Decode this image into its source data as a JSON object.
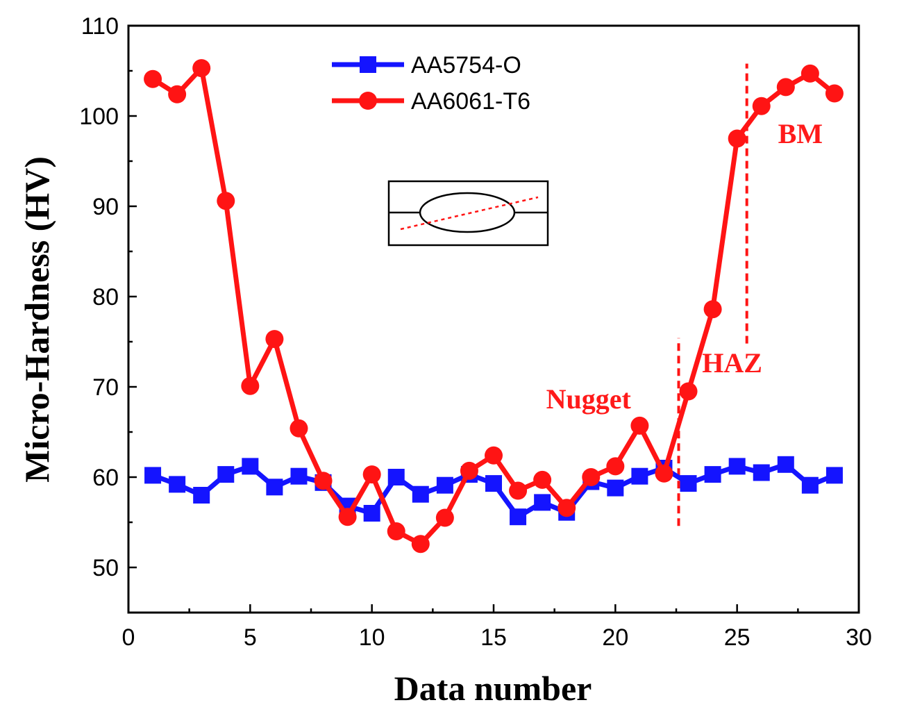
{
  "chart_data": {
    "type": "line",
    "title": "",
    "xlabel": "Data number",
    "ylabel": "Micro-Hardness (HV)",
    "xlim": [
      0,
      30
    ],
    "ylim": [
      45,
      110
    ],
    "xticks": [
      0,
      5,
      10,
      15,
      20,
      25,
      30
    ],
    "yticks": [
      50,
      60,
      70,
      80,
      90,
      100,
      110
    ],
    "grid": false,
    "legend_position": "top-center",
    "series": [
      {
        "name": "AA5754-O",
        "color": "#1414ff",
        "marker": "square",
        "x": [
          1,
          2,
          3,
          4,
          5,
          6,
          7,
          8,
          9,
          10,
          11,
          12,
          13,
          14,
          15,
          16,
          17,
          18,
          19,
          20,
          21,
          22,
          23,
          24,
          25,
          26,
          27,
          28,
          29
        ],
        "y": [
          60.2,
          59.2,
          58.0,
          60.3,
          61.2,
          58.9,
          60.1,
          59.4,
          56.8,
          56.0,
          60.0,
          58.1,
          59.1,
          60.3,
          59.3,
          55.6,
          57.2,
          56.1,
          59.5,
          58.8,
          60.1,
          61.0,
          59.3,
          60.3,
          61.2,
          60.5,
          61.4,
          59.1,
          60.2
        ]
      },
      {
        "name": "AA6061-T6",
        "color": "#ff1414",
        "marker": "circle",
        "x": [
          1,
          2,
          3,
          4,
          5,
          6,
          7,
          8,
          9,
          10,
          11,
          12,
          13,
          14,
          15,
          16,
          17,
          18,
          19,
          20,
          21,
          22,
          23,
          24,
          25,
          26,
          27,
          28,
          29
        ],
        "y": [
          104.1,
          102.4,
          105.3,
          90.6,
          70.1,
          75.3,
          65.4,
          59.6,
          55.6,
          60.3,
          54.0,
          52.6,
          55.5,
          60.7,
          62.4,
          58.5,
          59.7,
          56.6,
          60.0,
          61.2,
          65.7,
          60.4,
          69.5,
          78.6,
          97.5,
          101.1,
          103.2,
          104.7,
          102.5
        ]
      }
    ],
    "annotations": [
      {
        "text": "Nugget",
        "x": 18.9,
        "y": 67.6
      },
      {
        "text": "HAZ",
        "x": 24.8,
        "y": 71.6
      },
      {
        "text": "BM",
        "x": 27.6,
        "y": 97.0
      }
    ],
    "reference_lines": [
      {
        "x": 22.6,
        "y_range": [
          54.6,
          75.4
        ],
        "style": "dashed",
        "color": "#ff1414"
      },
      {
        "x": 25.4,
        "y_range": [
          74.8,
          105.8
        ],
        "style": "dashed",
        "color": "#ff1414"
      }
    ],
    "inset": {
      "description_icon": "weld-cross-section-schematic-icon"
    }
  }
}
